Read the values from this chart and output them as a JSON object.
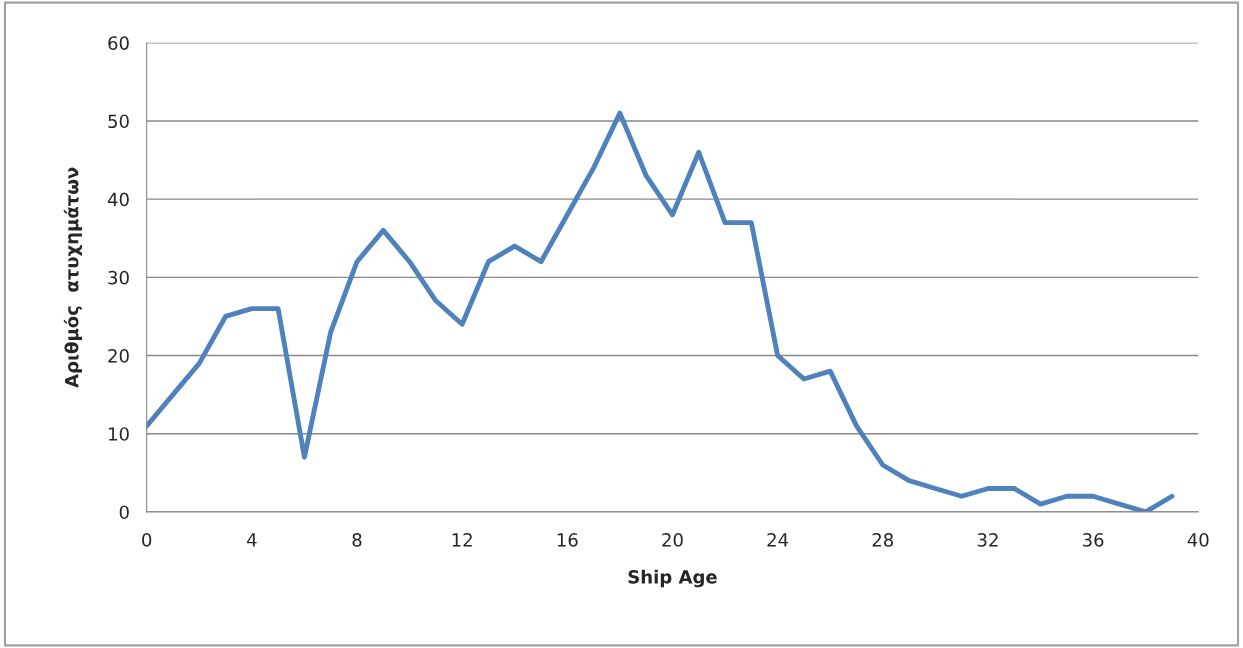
{
  "chart_data": {
    "type": "line",
    "xlabel": "Ship Age",
    "ylabel": "Αριθμός  ατυχημάτων",
    "x": [
      0,
      1,
      2,
      3,
      4,
      5,
      6,
      7,
      8,
      9,
      10,
      11,
      12,
      13,
      14,
      15,
      16,
      17,
      18,
      19,
      20,
      21,
      22,
      23,
      24,
      25,
      26,
      27,
      28,
      29,
      30,
      31,
      32,
      33,
      34,
      35,
      36,
      37,
      38,
      39
    ],
    "series": [
      {
        "color": "#4f81bd",
        "values": [
          11,
          15,
          19,
          25,
          26,
          26,
          7,
          23,
          32,
          36,
          32,
          27,
          24,
          32,
          34,
          32,
          38,
          44,
          51,
          43,
          38,
          46,
          37,
          37,
          20,
          17,
          18,
          11,
          6,
          4,
          3,
          2,
          3,
          3,
          1,
          2,
          2,
          1,
          0,
          2
        ]
      }
    ],
    "xlim": [
      0,
      40
    ],
    "xticks": [
      0,
      4,
      8,
      12,
      16,
      20,
      24,
      28,
      32,
      36,
      40
    ],
    "ylim": [
      0,
      60
    ],
    "yticks": [
      0,
      10,
      20,
      30,
      40,
      50,
      60
    ],
    "grid": "y",
    "legend": false,
    "marker": "none",
    "line_style": "solid"
  }
}
